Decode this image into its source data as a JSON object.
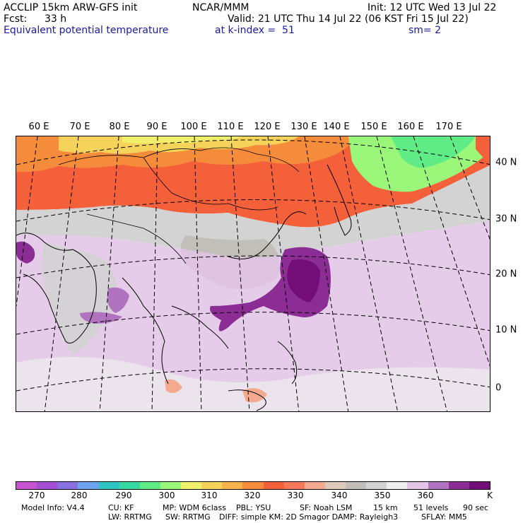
{
  "header": {
    "title_left": "ACCLIP 15km ARW-GFS init",
    "org": "NCAR/MMM",
    "init": "Init: 12 UTC Wed 13 Jul 22",
    "fcst_label": "Fcst:",
    "fcst_value": "33 h",
    "valid": "Valid: 21 UTC Thu 14 Jul 22 (06 KST Fri 15 Jul 22)",
    "field": "Equivalent potential temperature",
    "level": "at k-index =  51",
    "smoothing": "sm= 2"
  },
  "map": {
    "lon_labels": [
      "60 E",
      "70 E",
      "80 E",
      "90 E",
      "100 E",
      "110 E",
      "120 E",
      "130 E",
      "140 E",
      "150 E",
      "160 E",
      "170 E"
    ],
    "lat_labels": [
      "40 N",
      "30 N",
      "20 N",
      "10 N",
      "0"
    ]
  },
  "colorbar": {
    "colors": [
      "#c853d0",
      "#a54fd6",
      "#8870e0",
      "#6ea4ee",
      "#2ec4c4",
      "#34d8a0",
      "#5fec86",
      "#9af77a",
      "#f0f06c",
      "#f5d35a",
      "#f6b44a",
      "#f58c3c",
      "#f4603a",
      "#f5785a",
      "#f3aa8e",
      "#dccbbb",
      "#c2beb9",
      "#d3d3d3",
      "#efefef",
      "#e3c6e6",
      "#b073c0",
      "#8b2d95",
      "#730d77"
    ],
    "ticks": [
      "270",
      "280",
      "290",
      "300",
      "310",
      "320",
      "330",
      "340",
      "350",
      "360"
    ],
    "unit": "K"
  },
  "footer": {
    "line1": {
      "model": "Model Info: V4.4",
      "cu": "CU: KF",
      "mp": "MP: WDM 6class",
      "pbl": "PBL: YSU",
      "sf": "SF: Noah LSM",
      "res": "15 km",
      "levels": "51 levels",
      "dt": "90 sec"
    },
    "line2": {
      "lw": "LW: RRTMG",
      "sw": "SW: RRTMG",
      "diff": "DIFF: simple KM: 2D Smagor DAMP: Rayleigh3",
      "sflay": "SFLAY: MM5"
    }
  }
}
